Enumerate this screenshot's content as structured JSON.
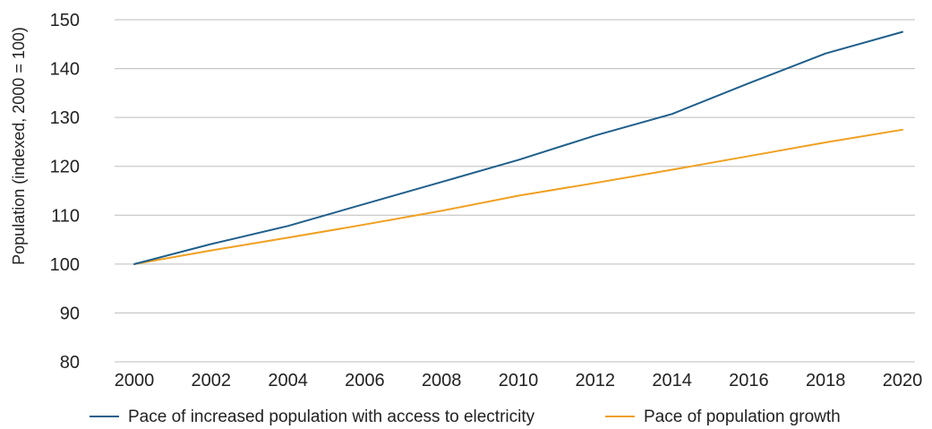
{
  "chart_data": {
    "type": "line",
    "title": "",
    "xlabel": "",
    "ylabel": "Population (indexed, 2000 = 100)",
    "x": [
      2000,
      2002,
      2004,
      2006,
      2008,
      2010,
      2012,
      2014,
      2016,
      2018,
      2020
    ],
    "x_tick_labels": [
      "2000",
      "2002",
      "2004",
      "2006",
      "2008",
      "2010",
      "2012",
      "2014",
      "2016",
      "2018",
      "2020"
    ],
    "y_ticks": [
      80,
      90,
      100,
      110,
      120,
      130,
      140,
      150
    ],
    "y_tick_labels": [
      "80",
      "90",
      "100",
      "110",
      "120",
      "130",
      "140",
      "150"
    ],
    "ylim": [
      80,
      150
    ],
    "grid": "horizontal",
    "legend_position": "bottom",
    "series": [
      {
        "name": "Pace of increased population with access to electricity",
        "color": "#1f5f8b",
        "values": [
          100,
          104.1,
          107.8,
          112.3,
          116.8,
          121.3,
          126.3,
          130.7,
          137,
          143.1,
          147.5
        ]
      },
      {
        "name": "Pace of population growth",
        "color": "#f0a020",
        "values": [
          100,
          102.8,
          105.4,
          108.1,
          110.9,
          114,
          116.6,
          119.3,
          122.1,
          124.9,
          127.5
        ]
      }
    ]
  }
}
